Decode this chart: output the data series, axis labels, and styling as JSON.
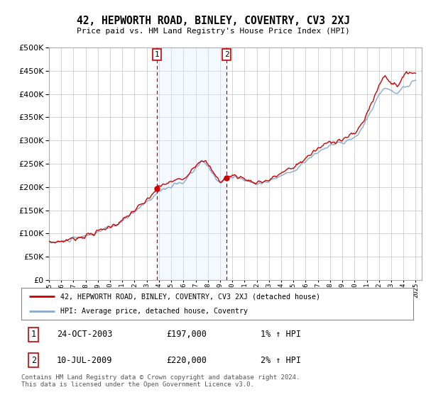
{
  "title": "42, HEPWORTH ROAD, BINLEY, COVENTRY, CV3 2XJ",
  "subtitle": "Price paid vs. HM Land Registry's House Price Index (HPI)",
  "ytick_values": [
    0,
    50000,
    100000,
    150000,
    200000,
    250000,
    300000,
    350000,
    400000,
    450000,
    500000
  ],
  "ylim": [
    0,
    500000
  ],
  "xlim_start": 1995.0,
  "xlim_end": 2025.5,
  "marker1_x": 2003.82,
  "marker1_y": 197000,
  "marker1_label": "1",
  "marker2_x": 2009.53,
  "marker2_y": 220000,
  "marker2_label": "2",
  "shade_color": "#ddeeff",
  "line_color_red": "#cc0000",
  "line_color_blue": "#88aacc",
  "legend_label1": "42, HEPWORTH ROAD, BINLEY, COVENTRY, CV3 2XJ (detached house)",
  "legend_label2": "HPI: Average price, detached house, Coventry",
  "table_row1_num": "1",
  "table_row1_date": "24-OCT-2003",
  "table_row1_price": "£197,000",
  "table_row1_hpi": "1% ↑ HPI",
  "table_row2_num": "2",
  "table_row2_date": "10-JUL-2009",
  "table_row2_price": "£220,000",
  "table_row2_hpi": "2% ↑ HPI",
  "footnote": "Contains HM Land Registry data © Crown copyright and database right 2024.\nThis data is licensed under the Open Government Licence v3.0.",
  "background_color": "#ffffff",
  "plot_bg_color": "#ffffff",
  "grid_color": "#cccccc"
}
